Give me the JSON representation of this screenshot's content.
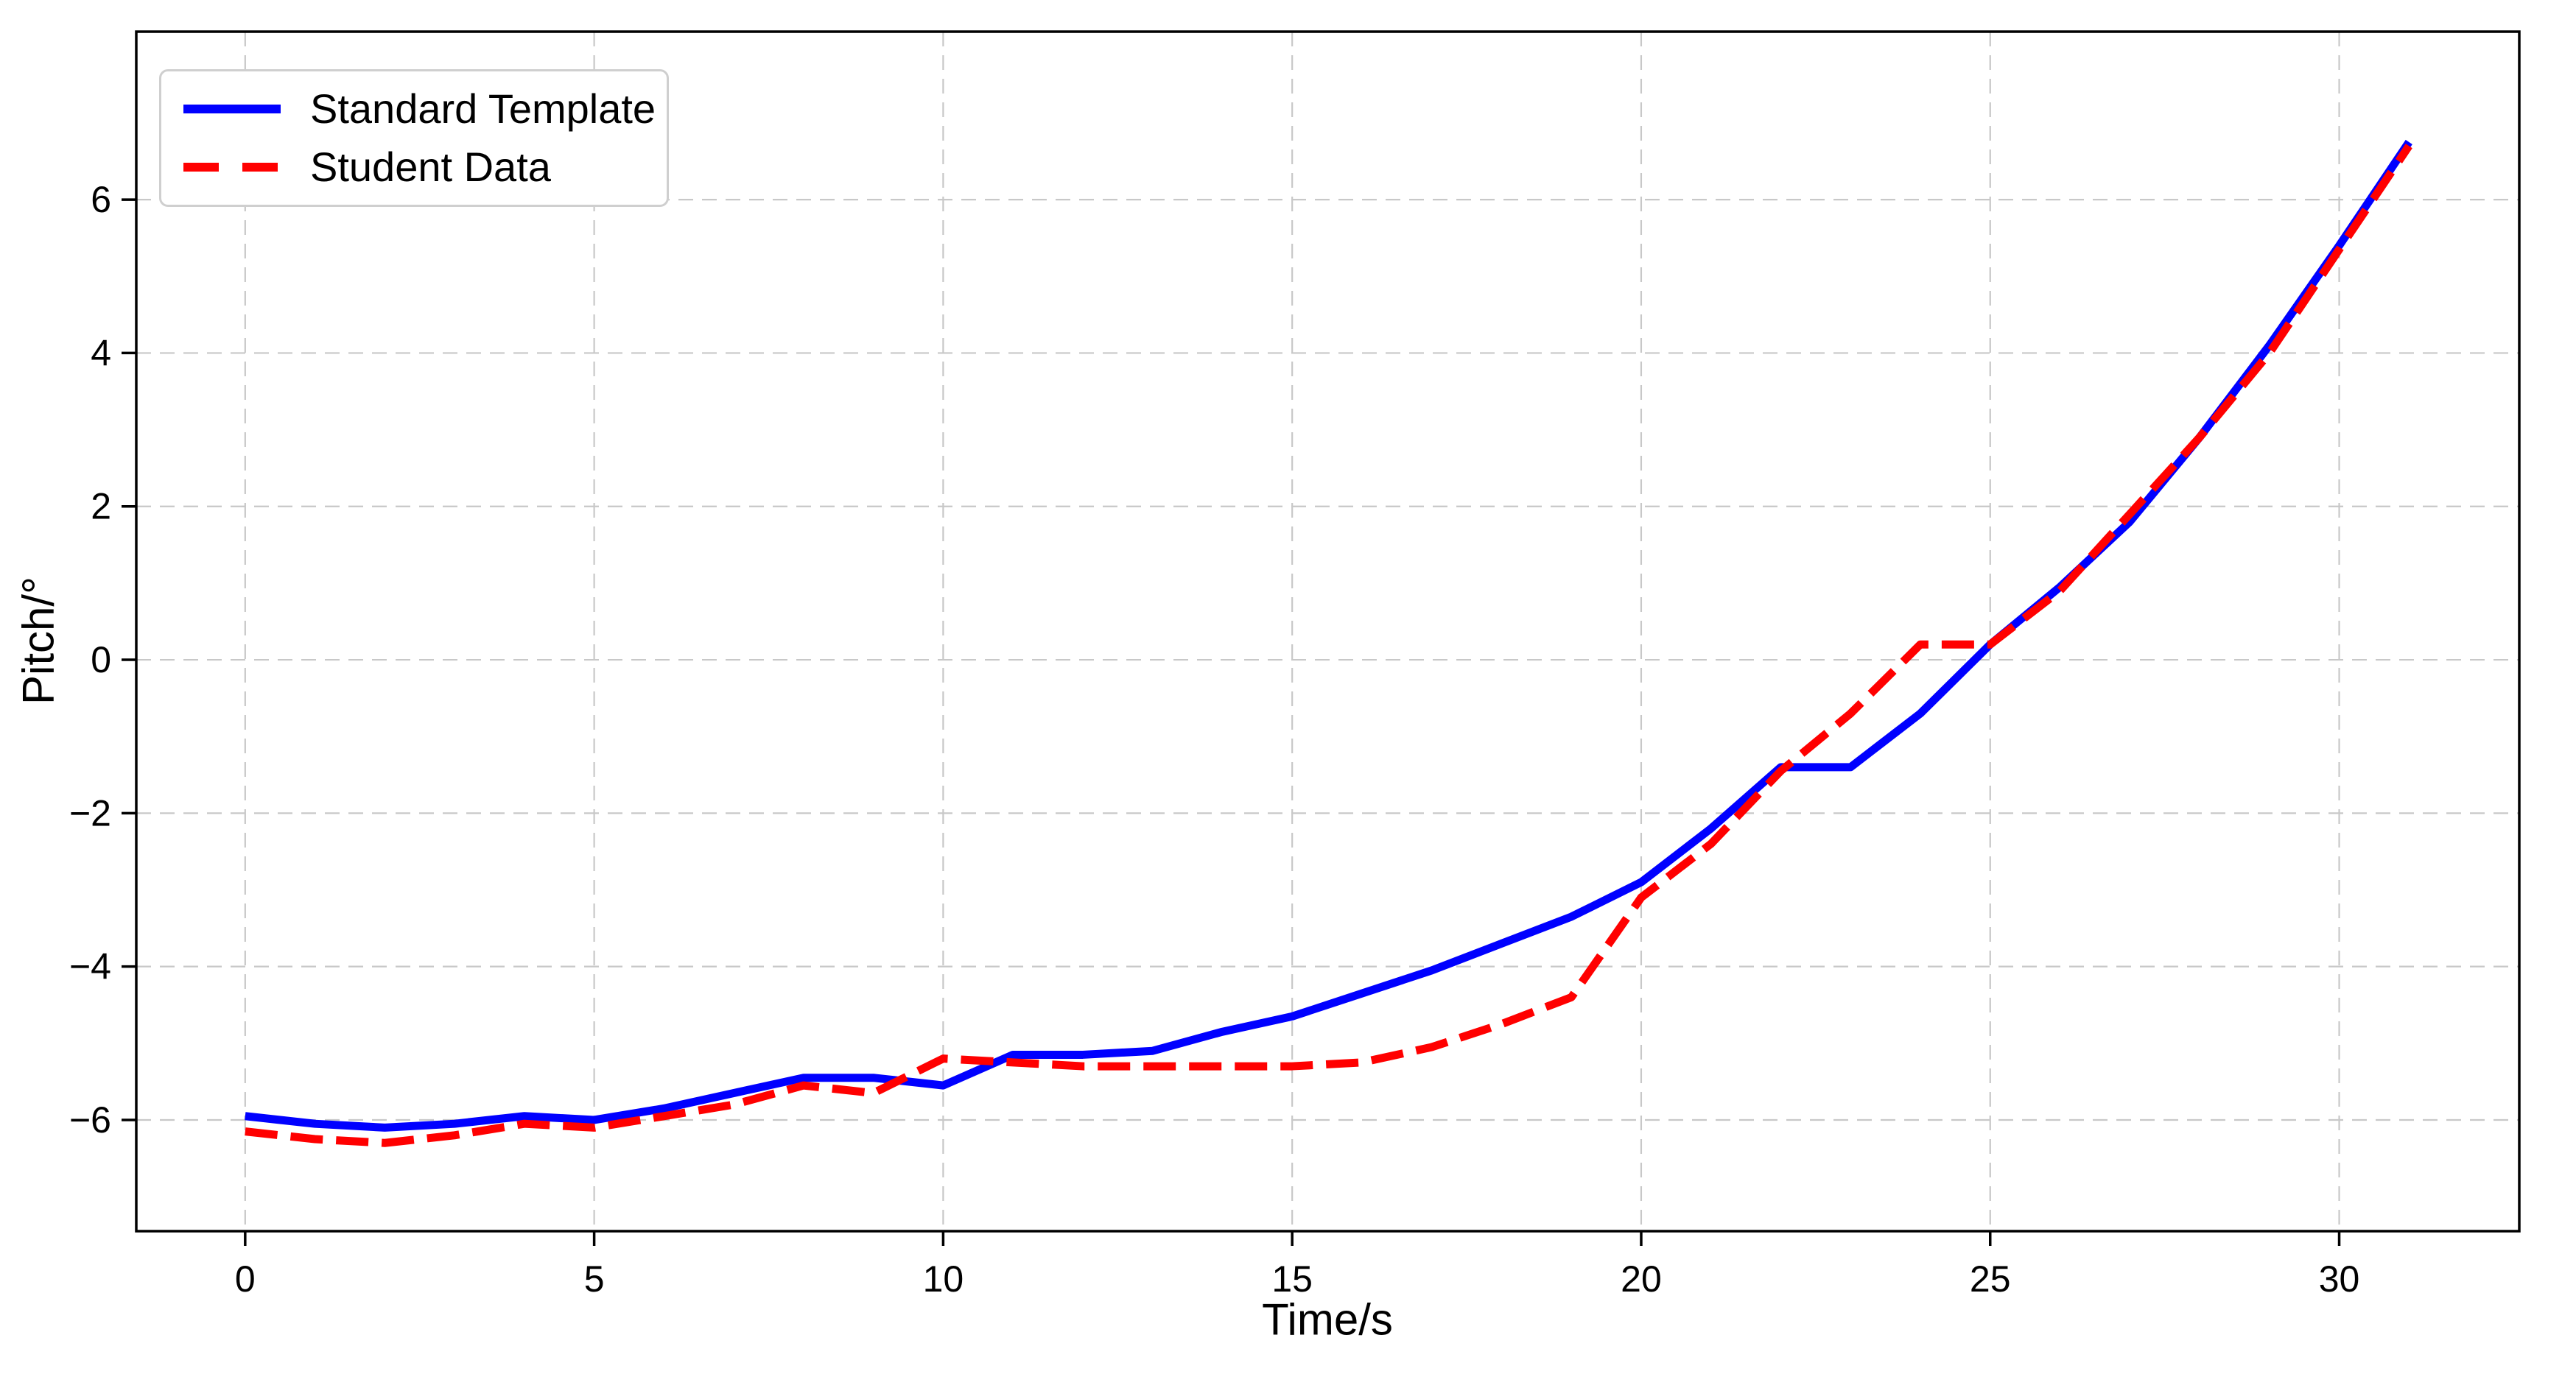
{
  "figure": {
    "background": "#ffffff"
  },
  "chart_data": {
    "type": "line",
    "title": "",
    "xlabel": "Time/s",
    "ylabel": "Pitch/°",
    "x": [
      0,
      1,
      2,
      3,
      4,
      5,
      6,
      7,
      8,
      9,
      10,
      11,
      12,
      13,
      14,
      15,
      16,
      17,
      18,
      19,
      20,
      21,
      22,
      23,
      24,
      25,
      26,
      27,
      28,
      29,
      30,
      31
    ],
    "series": [
      {
        "name": "Standard Template",
        "color": "#0000ff",
        "line_style": "solid",
        "values": [
          -5.95,
          -6.05,
          -6.1,
          -6.05,
          -5.95,
          -6.0,
          -5.85,
          -5.65,
          -5.45,
          -5.45,
          -5.55,
          -5.15,
          -5.15,
          -5.1,
          -4.85,
          -4.65,
          -4.35,
          -4.05,
          -3.7,
          -3.35,
          -2.9,
          -2.2,
          -1.4,
          -1.4,
          -0.7,
          0.2,
          0.95,
          1.8,
          2.9,
          4.1,
          5.4,
          6.75
        ]
      },
      {
        "name": "Student Data",
        "color": "#ff0000",
        "line_style": "dashed",
        "values": [
          -6.15,
          -6.25,
          -6.3,
          -6.2,
          -6.05,
          -6.1,
          -5.95,
          -5.8,
          -5.55,
          -5.65,
          -5.2,
          -5.25,
          -5.3,
          -5.3,
          -5.3,
          -5.3,
          -5.25,
          -5.05,
          -4.75,
          -4.4,
          -3.1,
          -2.4,
          -1.45,
          -0.7,
          0.2,
          0.2,
          0.9,
          1.9,
          2.9,
          4.0,
          5.35,
          6.7
        ]
      }
    ],
    "xlim": [
      -1.56,
      32.58
    ],
    "ylim": [
      -7.45,
      8.19
    ],
    "x_ticks": {
      "values": [
        0,
        5,
        10,
        15,
        20,
        25,
        30
      ],
      "labels": [
        "0",
        "5",
        "10",
        "15",
        "20",
        "25",
        "30"
      ]
    },
    "y_ticks": {
      "values": [
        -6,
        -4,
        -2,
        0,
        2,
        4,
        6
      ],
      "labels": [
        "−6",
        "−4",
        "−2",
        "0",
        "2",
        "4",
        "6"
      ]
    },
    "grid": {
      "show": true,
      "color": "#c8c8c8",
      "style": "dashed"
    },
    "frame_color": "#000000",
    "legend": {
      "position": "upper-left",
      "items": [
        "Standard Template",
        "Student Data"
      ]
    }
  }
}
